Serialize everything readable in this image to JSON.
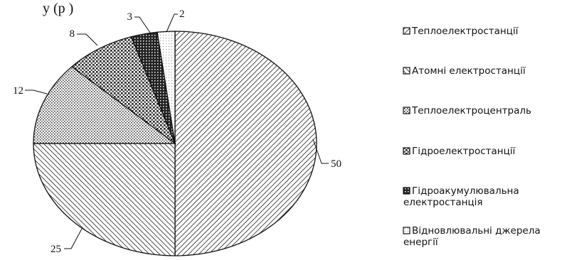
{
  "caption_fragment": "у         (р        )",
  "chart_data": {
    "type": "pie",
    "title": "",
    "legend_position": "right",
    "slices": [
      {
        "name": "Теплоелектростанції",
        "value": 50,
        "label": "50",
        "pattern": "hatch-back"
      },
      {
        "name": "Атомні електростанції",
        "value": 25,
        "label": "25",
        "pattern": "hatch-forward"
      },
      {
        "name": "Теплоелектроцентраль",
        "value": 12,
        "label": "12",
        "pattern": "dots"
      },
      {
        "name": "Гідроелектростанції",
        "value": 8,
        "label": "8",
        "pattern": "grid"
      },
      {
        "name": "Гідроакумулювальна електростанція",
        "value": 3,
        "label": "3",
        "pattern": "dense"
      },
      {
        "name": "Відновлювальні джерела енергії",
        "value": 2,
        "label": "2",
        "pattern": "light"
      }
    ],
    "legend_lines": [
      [
        "Теплоелектростанції"
      ],
      [
        "Атомні електростанції"
      ],
      [
        "Теплоелектроцентраль"
      ],
      [
        "Гідроелектростанції"
      ],
      [
        "Гідроакумулювальна",
        "електростанція"
      ],
      [
        "Відновлювальні джерела",
        "енергії"
      ]
    ]
  }
}
